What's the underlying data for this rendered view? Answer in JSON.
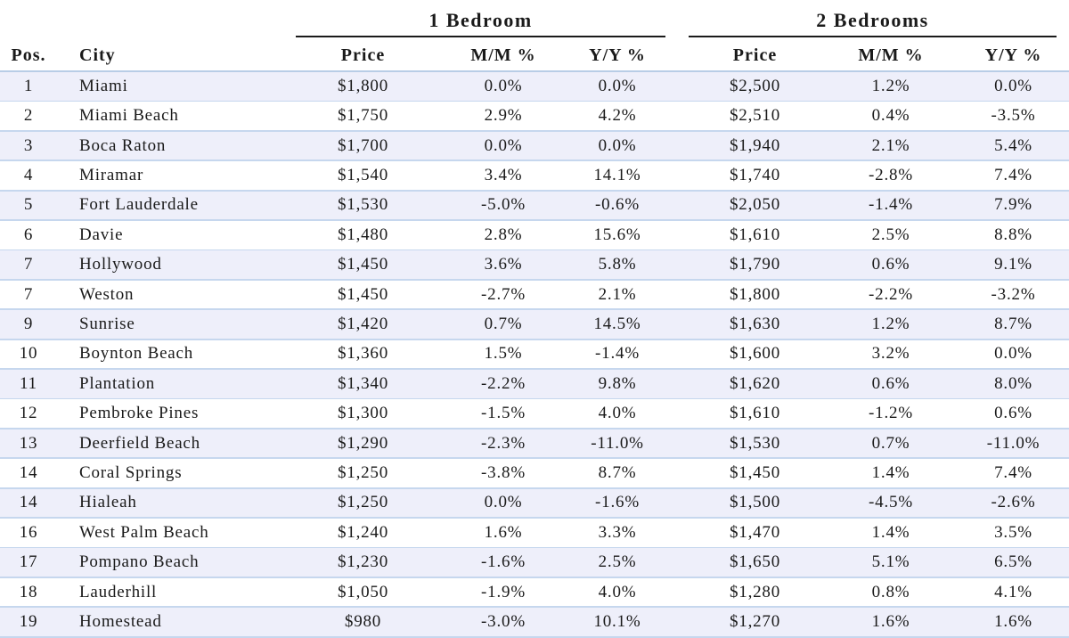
{
  "groups": {
    "one_bedroom": "1 Bedroom",
    "two_bedrooms": "2 Bedrooms"
  },
  "headers": {
    "pos": "Pos.",
    "city": "City",
    "price_1": "Price",
    "mm_1": "M/M %",
    "yy_1": "Y/Y %",
    "price_2": "Price",
    "mm_2": "M/M %",
    "yy_2": "Y/Y %"
  },
  "rows": [
    {
      "pos": "1",
      "city": "Miami",
      "p1": "$1,800",
      "mm1": "0.0%",
      "yy1": "0.0%",
      "p2": "$2,500",
      "mm2": "1.2%",
      "yy2": "0.0%"
    },
    {
      "pos": "2",
      "city": "Miami Beach",
      "p1": "$1,750",
      "mm1": "2.9%",
      "yy1": "4.2%",
      "p2": "$2,510",
      "mm2": "0.4%",
      "yy2": "-3.5%"
    },
    {
      "pos": "3",
      "city": "Boca Raton",
      "p1": "$1,700",
      "mm1": "0.0%",
      "yy1": "0.0%",
      "p2": "$1,940",
      "mm2": "2.1%",
      "yy2": "5.4%"
    },
    {
      "pos": "4",
      "city": "Miramar",
      "p1": "$1,540",
      "mm1": "3.4%",
      "yy1": "14.1%",
      "p2": "$1,740",
      "mm2": "-2.8%",
      "yy2": "7.4%"
    },
    {
      "pos": "5",
      "city": "Fort Lauderdale",
      "p1": "$1,530",
      "mm1": "-5.0%",
      "yy1": "-0.6%",
      "p2": "$2,050",
      "mm2": "-1.4%",
      "yy2": "7.9%"
    },
    {
      "pos": "6",
      "city": "Davie",
      "p1": "$1,480",
      "mm1": "2.8%",
      "yy1": "15.6%",
      "p2": "$1,610",
      "mm2": "2.5%",
      "yy2": "8.8%"
    },
    {
      "pos": "7",
      "city": "Hollywood",
      "p1": "$1,450",
      "mm1": "3.6%",
      "yy1": "5.8%",
      "p2": "$1,790",
      "mm2": "0.6%",
      "yy2": "9.1%"
    },
    {
      "pos": "7",
      "city": "Weston",
      "p1": "$1,450",
      "mm1": "-2.7%",
      "yy1": "2.1%",
      "p2": "$1,800",
      "mm2": "-2.2%",
      "yy2": "-3.2%"
    },
    {
      "pos": "9",
      "city": "Sunrise",
      "p1": "$1,420",
      "mm1": "0.7%",
      "yy1": "14.5%",
      "p2": "$1,630",
      "mm2": "1.2%",
      "yy2": "8.7%"
    },
    {
      "pos": "10",
      "city": "Boynton Beach",
      "p1": "$1,360",
      "mm1": "1.5%",
      "yy1": "-1.4%",
      "p2": "$1,600",
      "mm2": "3.2%",
      "yy2": "0.0%"
    },
    {
      "pos": "11",
      "city": "Plantation",
      "p1": "$1,340",
      "mm1": "-2.2%",
      "yy1": "9.8%",
      "p2": "$1,620",
      "mm2": "0.6%",
      "yy2": "8.0%"
    },
    {
      "pos": "12",
      "city": "Pembroke Pines",
      "p1": "$1,300",
      "mm1": "-1.5%",
      "yy1": "4.0%",
      "p2": "$1,610",
      "mm2": "-1.2%",
      "yy2": "0.6%"
    },
    {
      "pos": "13",
      "city": "Deerfield Beach",
      "p1": "$1,290",
      "mm1": "-2.3%",
      "yy1": "-11.0%",
      "p2": "$1,530",
      "mm2": "0.7%",
      "yy2": "-11.0%"
    },
    {
      "pos": "14",
      "city": "Coral Springs",
      "p1": "$1,250",
      "mm1": "-3.8%",
      "yy1": "8.7%",
      "p2": "$1,450",
      "mm2": "1.4%",
      "yy2": "7.4%"
    },
    {
      "pos": "14",
      "city": "Hialeah",
      "p1": "$1,250",
      "mm1": "0.0%",
      "yy1": "-1.6%",
      "p2": "$1,500",
      "mm2": "-4.5%",
      "yy2": "-2.6%"
    },
    {
      "pos": "16",
      "city": "West Palm Beach",
      "p1": "$1,240",
      "mm1": "1.6%",
      "yy1": "3.3%",
      "p2": "$1,470",
      "mm2": "1.4%",
      "yy2": "3.5%"
    },
    {
      "pos": "17",
      "city": "Pompano Beach",
      "p1": "$1,230",
      "mm1": "-1.6%",
      "yy1": "2.5%",
      "p2": "$1,650",
      "mm2": "5.1%",
      "yy2": "6.5%"
    },
    {
      "pos": "18",
      "city": "Lauderhill",
      "p1": "$1,050",
      "mm1": "-1.9%",
      "yy1": "4.0%",
      "p2": "$1,280",
      "mm2": "0.8%",
      "yy2": "4.1%"
    },
    {
      "pos": "19",
      "city": "Homestead",
      "p1": "$980",
      "mm1": "-3.0%",
      "yy1": "10.1%",
      "p2": "$1,270",
      "mm2": "1.6%",
      "yy2": "1.6%"
    }
  ]
}
